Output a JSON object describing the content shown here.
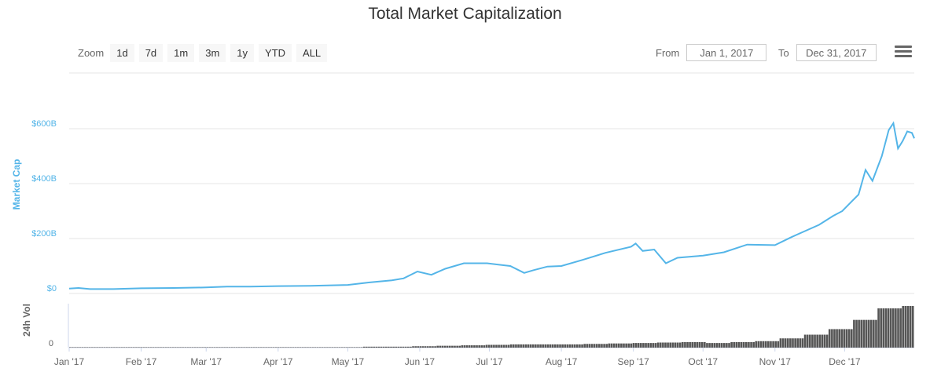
{
  "title": "Total Market Capitalization",
  "toolbar": {
    "zoom_label": "Zoom",
    "buttons": [
      "1d",
      "7d",
      "1m",
      "3m",
      "1y",
      "YTD",
      "ALL"
    ],
    "from_label": "From",
    "from_value": "Jan 1, 2017",
    "to_label": "To",
    "to_value": "Dec 31, 2017",
    "menu_icon": "hamburger-menu-icon"
  },
  "colors": {
    "line": "#54b5e8",
    "volume": "#555555",
    "grid": "#e6e6e6",
    "axis_label": "#54b5e8"
  },
  "chart_data": [
    {
      "type": "line",
      "ylabel": "Market Cap",
      "ylim": [
        0,
        600
      ],
      "y_ticks": [
        0,
        200,
        400,
        600
      ],
      "y_tick_labels": [
        "$0",
        "$200B",
        "$400B",
        "$600B"
      ],
      "x_tick_labels": [
        "Jan '17",
        "Feb '17",
        "Mar '17",
        "Apr '17",
        "May '17",
        "Jun '17",
        "Jul '17",
        "Aug '17",
        "Sep '17",
        "Oct '17",
        "Nov '17",
        "Dec '17"
      ],
      "grid": true,
      "series": [
        {
          "x": [
            "2017-01-01",
            "2017-01-05",
            "2017-01-10",
            "2017-01-20",
            "2017-02-01",
            "2017-02-15",
            "2017-03-01",
            "2017-03-10",
            "2017-03-20",
            "2017-04-01",
            "2017-04-15",
            "2017-05-01",
            "2017-05-10",
            "2017-05-20",
            "2017-05-25",
            "2017-05-31",
            "2017-06-06",
            "2017-06-12",
            "2017-06-20",
            "2017-06-30",
            "2017-07-10",
            "2017-07-16",
            "2017-07-20",
            "2017-07-26",
            "2017-08-01",
            "2017-08-10",
            "2017-08-20",
            "2017-08-31",
            "2017-09-02",
            "2017-09-05",
            "2017-09-10",
            "2017-09-15",
            "2017-09-20",
            "2017-10-01",
            "2017-10-10",
            "2017-10-20",
            "2017-11-01",
            "2017-11-08",
            "2017-11-12",
            "2017-11-20",
            "2017-11-26",
            "2017-11-30",
            "2017-12-04",
            "2017-12-07",
            "2017-12-10",
            "2017-12-13",
            "2017-12-17",
            "2017-12-20",
            "2017-12-22",
            "2017-12-24",
            "2017-12-26",
            "2017-12-28",
            "2017-12-30",
            "2017-12-31"
          ],
          "values": [
            18,
            20,
            16,
            16,
            19,
            20,
            22,
            25,
            25,
            27,
            28,
            31,
            40,
            48,
            55,
            80,
            68,
            90,
            110,
            110,
            100,
            75,
            85,
            98,
            100,
            122,
            148,
            170,
            182,
            155,
            160,
            110,
            130,
            138,
            150,
            178,
            176,
            205,
            220,
            250,
            282,
            300,
            335,
            360,
            450,
            410,
            500,
            595,
            620,
            528,
            555,
            590,
            585,
            565
          ]
        }
      ]
    },
    {
      "type": "bar",
      "ylabel": "24h Vol",
      "y_tick_labels": [
        "0"
      ],
      "values": [
        1,
        1,
        1,
        1,
        1,
        1,
        1,
        1,
        1,
        1,
        1,
        1,
        1,
        1,
        1,
        1,
        1,
        1,
        1,
        1,
        1,
        1,
        1,
        1,
        1,
        1,
        1,
        1,
        1,
        1,
        1,
        1,
        1,
        1,
        1,
        1,
        1,
        1,
        1,
        1,
        1,
        1,
        1,
        1,
        1,
        1,
        1,
        1,
        1,
        1,
        1,
        1,
        1,
        1,
        1,
        1,
        1,
        1,
        1,
        1,
        1,
        1,
        1,
        1,
        1,
        1,
        1,
        1,
        1,
        1,
        1,
        1,
        1,
        1,
        1,
        1,
        1,
        1,
        1,
        1,
        1,
        1,
        1,
        1,
        1,
        1,
        1,
        1,
        1,
        1,
        1,
        1,
        1,
        1,
        1,
        1,
        1,
        1,
        1,
        1,
        1,
        1,
        1,
        1,
        1,
        1,
        1,
        1,
        1,
        1,
        1,
        1,
        1,
        1,
        1,
        1,
        1,
        1,
        1,
        1,
        2,
        2,
        2,
        2,
        2,
        2,
        2,
        2,
        2,
        2,
        2,
        2,
        2,
        2,
        2,
        2,
        2,
        2,
        2,
        2,
        3,
        3,
        3,
        3,
        3,
        3,
        3,
        3,
        3,
        3,
        4,
        4,
        4,
        4,
        4,
        4,
        4,
        4,
        4,
        4,
        5,
        5,
        5,
        5,
        5,
        5,
        5,
        5,
        5,
        5,
        6,
        6,
        6,
        6,
        6,
        6,
        6,
        6,
        6,
        6,
        7,
        7,
        7,
        7,
        7,
        7,
        7,
        7,
        7,
        7,
        7,
        7,
        7,
        7,
        7,
        7,
        7,
        7,
        7,
        7,
        7,
        7,
        7,
        7,
        7,
        7,
        7,
        7,
        7,
        7,
        8,
        8,
        8,
        8,
        8,
        8,
        8,
        8,
        8,
        8,
        9,
        9,
        9,
        9,
        9,
        9,
        9,
        9,
        9,
        9,
        10,
        10,
        10,
        10,
        10,
        10,
        10,
        10,
        10,
        10,
        11,
        11,
        11,
        11,
        11,
        11,
        11,
        11,
        11,
        11,
        12,
        12,
        12,
        12,
        12,
        12,
        12,
        12,
        12,
        12,
        10,
        10,
        10,
        10,
        10,
        10,
        10,
        10,
        10,
        10,
        12,
        12,
        12,
        12,
        12,
        12,
        12,
        12,
        12,
        12,
        14,
        14,
        14,
        14,
        14,
        14,
        14,
        14,
        14,
        14,
        20,
        20,
        20,
        20,
        20,
        20,
        20,
        20,
        20,
        20,
        28,
        28,
        28,
        28,
        28,
        28,
        28,
        28,
        28,
        28,
        40,
        40,
        40,
        40,
        40,
        40,
        40,
        40,
        40,
        40,
        60,
        60,
        60,
        60,
        60,
        60,
        60,
        60,
        60,
        60,
        85,
        85,
        85,
        85,
        85,
        85,
        85,
        85,
        85,
        85,
        90,
        90,
        90,
        90,
        90
      ]
    }
  ]
}
